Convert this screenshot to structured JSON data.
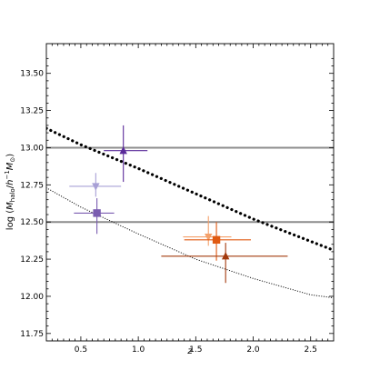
{
  "chart_data": {
    "type": "scatter",
    "xlabel": "z",
    "ylabel": "log (M_halo/h^-1 M_⊙)",
    "xlim": [
      0.2,
      2.7
    ],
    "ylim": [
      11.7,
      13.7
    ],
    "x_ticks": [
      0.5,
      1.0,
      1.5,
      2.0,
      2.5
    ],
    "x_tick_labels": [
      "0.5",
      "1.0",
      "1.5",
      "2.0",
      "2.5"
    ],
    "y_ticks": [
      11.75,
      12.0,
      12.25,
      12.5,
      12.75,
      13.0,
      13.25,
      13.5
    ],
    "y_tick_labels": [
      "11.75",
      "12.00",
      "12.25",
      "12.50",
      "12.75",
      "13.00",
      "13.25",
      "13.50"
    ],
    "grid": false,
    "reference_lines": [
      {
        "y": 13.0,
        "color": "#8c8c8c"
      },
      {
        "y": 12.5,
        "color": "#8c8c8c"
      }
    ],
    "curves": [
      {
        "style": "thick-dotted",
        "color": "#000000",
        "x": [
          0.2,
          0.5,
          1.0,
          1.5,
          2.0,
          2.5,
          2.7
        ],
        "y": [
          13.13,
          13.02,
          12.86,
          12.69,
          12.52,
          12.37,
          12.31
        ]
      },
      {
        "style": "thin-dotted",
        "color": "#000000",
        "x": [
          0.2,
          0.5,
          1.0,
          1.5,
          2.0,
          2.5,
          2.7
        ],
        "y": [
          12.73,
          12.6,
          12.42,
          12.25,
          12.12,
          12.01,
          11.99
        ]
      }
    ],
    "points": [
      {
        "marker": "triangle-down",
        "color": "#a8a0d6",
        "x": 0.63,
        "y": 12.74,
        "xerr": [
          0.23,
          0.22
        ],
        "yerr": [
          0.07,
          0.09
        ]
      },
      {
        "marker": "square",
        "color": "#7a5cb0",
        "x": 0.64,
        "y": 12.56,
        "xerr": [
          0.2,
          0.15
        ],
        "yerr": [
          0.14,
          0.1
        ]
      },
      {
        "marker": "triangle-up",
        "color": "#5a2a9a",
        "x": 0.87,
        "y": 12.98,
        "xerr": [
          0.17,
          0.21
        ],
        "yerr": [
          0.21,
          0.17
        ]
      },
      {
        "marker": "triangle-down",
        "color": "#f4a06a",
        "x": 1.61,
        "y": 12.4,
        "xerr": [
          0.22,
          0.2
        ],
        "yerr": [
          0.06,
          0.14
        ]
      },
      {
        "marker": "square",
        "color": "#e05a12",
        "x": 1.68,
        "y": 12.38,
        "xerr": [
          0.28,
          0.3
        ],
        "yerr": [
          0.14,
          0.12
        ]
      },
      {
        "marker": "triangle-up",
        "color": "#a33a0e",
        "x": 1.76,
        "y": 12.27,
        "xerr": [
          0.56,
          0.54
        ],
        "yerr": [
          0.18,
          0.09
        ]
      }
    ]
  }
}
